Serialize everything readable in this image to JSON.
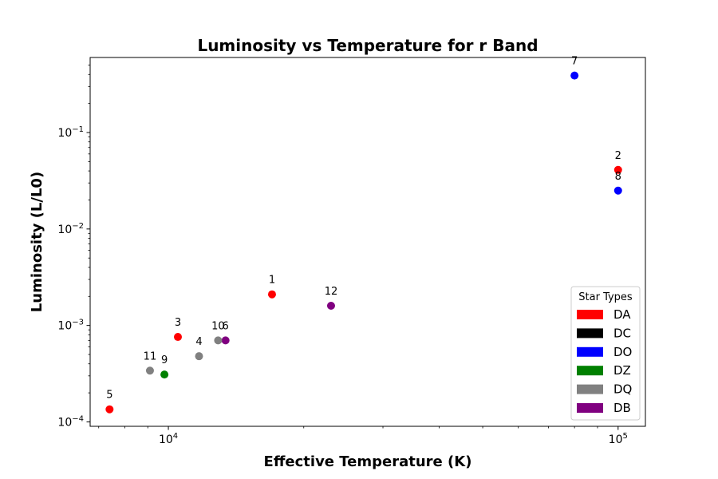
{
  "chart_data": {
    "type": "scatter",
    "title": "Luminosity vs Temperature for r Band",
    "xlabel": "Effective Temperature (K)",
    "ylabel": "Luminosity (L/L0)",
    "x_scale": "log",
    "y_scale": "log",
    "xlim": [
      6700,
      115000
    ],
    "ylim": [
      9e-05,
      0.6
    ],
    "grid": false,
    "x_ticks": [
      {
        "base": "10",
        "exp": "4",
        "value": 10000
      },
      {
        "base": "10",
        "exp": "5",
        "value": 100000
      }
    ],
    "y_ticks": [
      {
        "base": "10",
        "exp": "−4",
        "value": 0.0001
      },
      {
        "base": "10",
        "exp": "−3",
        "value": 0.001
      },
      {
        "base": "10",
        "exp": "−2",
        "value": 0.01
      },
      {
        "base": "10",
        "exp": "−1",
        "value": 0.1
      }
    ],
    "legend": {
      "title": "Star Types",
      "placement": "lower-right",
      "entries": [
        {
          "label": "DA",
          "color": "#ff0000"
        },
        {
          "label": "DC",
          "color": "#000000"
        },
        {
          "label": "DO",
          "color": "#0000ff"
        },
        {
          "label": "DZ",
          "color": "#008000"
        },
        {
          "label": "DQ",
          "color": "#808080"
        },
        {
          "label": "DB",
          "color": "#800080"
        }
      ]
    },
    "points": [
      {
        "label": "1",
        "type": "DA",
        "x": 17000,
        "y": 0.0021
      },
      {
        "label": "2",
        "type": "DA",
        "x": 100000,
        "y": 0.041
      },
      {
        "label": "3",
        "type": "DA",
        "x": 10500,
        "y": 0.00076
      },
      {
        "label": "4",
        "type": "DQ",
        "x": 11700,
        "y": 0.00048
      },
      {
        "label": "5",
        "type": "DA",
        "x": 7400,
        "y": 0.000135
      },
      {
        "label": "6",
        "type": "DB",
        "x": 13400,
        "y": 0.0007
      },
      {
        "label": "7",
        "type": "DO",
        "x": 80000,
        "y": 0.39
      },
      {
        "label": "8",
        "type": "DO",
        "x": 100000,
        "y": 0.025
      },
      {
        "label": "9",
        "type": "DZ",
        "x": 9800,
        "y": 0.00031
      },
      {
        "label": "10",
        "type": "DQ",
        "x": 12900,
        "y": 0.0007
      },
      {
        "label": "11",
        "type": "DQ",
        "x": 9100,
        "y": 0.00034
      },
      {
        "label": "12",
        "type": "DB",
        "x": 23000,
        "y": 0.0016
      }
    ]
  }
}
